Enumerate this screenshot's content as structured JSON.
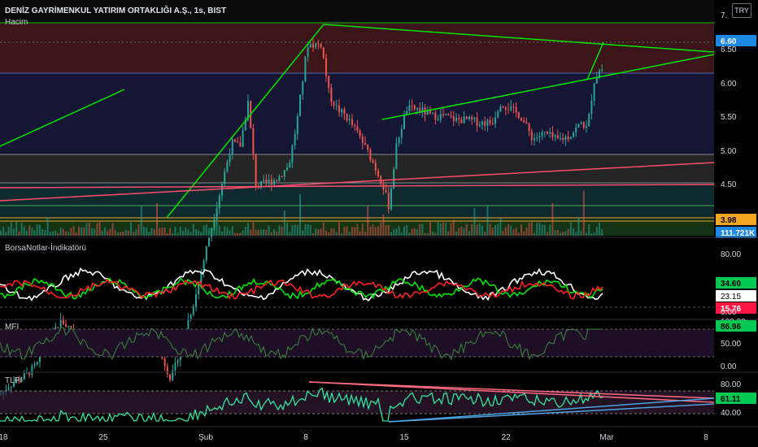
{
  "header": {
    "title": "DENİZ GAYRİMENKUL YATIRIM ORTAKLIĞI A.Ş., 1s, BIST",
    "volume_label": "Hacim",
    "currency": "TRY"
  },
  "panels": {
    "price": {
      "y_ticks": [
        "7.",
        "6.50",
        "6.00",
        "5.50",
        "5.00",
        "4.50",
        "4.00"
      ],
      "last_price": "6.60",
      "level_label": "3.98",
      "volume_label": "111.721K"
    },
    "borsanotlar": {
      "title": "BorsaNotlar-İndikatörü",
      "y_ticks": [
        "80.00",
        "0.00"
      ],
      "value_green": "34.60",
      "value_white": "23.15",
      "value_red": "15.76"
    },
    "mfi": {
      "title": "MFI",
      "y_ticks": [
        "100.00",
        "50.00",
        "0.00"
      ],
      "value": "86.96"
    },
    "tlpi": {
      "title": "TLPI",
      "y_ticks": [
        "80.00",
        "40.00"
      ],
      "value": "61.11"
    }
  },
  "x_axis": {
    "labels": [
      "18",
      "25",
      "Şub",
      "8",
      "15",
      "22",
      "Mar",
      "8"
    ]
  },
  "colors": {
    "background": "#000000",
    "up": "#26a69a",
    "down": "#ef5350",
    "trendline": "#00e600",
    "red_line": "#ff4d6d",
    "blue_line": "#4aa3df",
    "price_badge": "#1e88e5",
    "level_badge": "#f5a623",
    "green_badge": "#00c853",
    "red_badge": "#ff1744"
  },
  "chart_data": [
    {
      "type": "candlestick",
      "x": [
        "18",
        "25",
        "Şub",
        "8",
        "15",
        "22",
        "Mar",
        "8"
      ],
      "close_path": [
        [
          0,
          4.18
        ],
        [
          10,
          4.25
        ],
        [
          30,
          4.32
        ],
        [
          45,
          4.4
        ],
        [
          60,
          4.6
        ],
        [
          75,
          4.73
        ],
        [
          85,
          4.68
        ],
        [
          95,
          4.62
        ],
        [
          110,
          4.57
        ],
        [
          125,
          4.6
        ],
        [
          140,
          4.57
        ],
        [
          155,
          4.55
        ],
        [
          170,
          4.52
        ],
        [
          185,
          4.57
        ],
        [
          200,
          4.45
        ],
        [
          210,
          4.3
        ],
        [
          215,
          4.38
        ],
        [
          225,
          4.62
        ],
        [
          240,
          4.9
        ],
        [
          255,
          5.3
        ],
        [
          265,
          5.55
        ],
        [
          275,
          5.8
        ],
        [
          285,
          6.05
        ],
        [
          295,
          6.02
        ],
        [
          305,
          6.35
        ],
        [
          315,
          5.72
        ],
        [
          325,
          5.75
        ],
        [
          340,
          5.78
        ],
        [
          355,
          5.88
        ],
        [
          365,
          6.2
        ],
        [
          378,
          6.78
        ],
        [
          395,
          6.78
        ],
        [
          405,
          6.4
        ],
        [
          415,
          6.3
        ],
        [
          425,
          6.25
        ],
        [
          440,
          6.12
        ],
        [
          455,
          5.95
        ],
        [
          470,
          5.75
        ],
        [
          478,
          5.58
        ],
        [
          488,
          6.05
        ],
        [
          500,
          6.3
        ],
        [
          515,
          6.3
        ],
        [
          530,
          6.25
        ],
        [
          545,
          6.25
        ],
        [
          560,
          6.22
        ],
        [
          575,
          6.22
        ],
        [
          590,
          6.2
        ],
        [
          605,
          6.2
        ],
        [
          615,
          6.35
        ],
        [
          628,
          6.3
        ],
        [
          640,
          6.25
        ],
        [
          655,
          6.08
        ],
        [
          670,
          6.12
        ],
        [
          685,
          6.07
        ],
        [
          700,
          6.1
        ],
        [
          715,
          6.2
        ],
        [
          722,
          6.15
        ],
        [
          730,
          6.5
        ],
        [
          738,
          6.6
        ],
        [
          742,
          6.6
        ]
      ],
      "ylim": [
        4.0,
        7.0
      ]
    },
    {
      "type": "line",
      "title": "BorsaNotlar-İndikatörü",
      "series": [
        {
          "values": [
            34.6
          ]
        },
        {
          "values": [
            23.15
          ]
        },
        {
          "values": [
            15.76
          ]
        }
      ]
    },
    {
      "type": "line",
      "title": "MFI",
      "series": [
        {
          "values": [
            86.96
          ]
        }
      ],
      "ylim": [
        0,
        100
      ]
    },
    {
      "type": "line",
      "title": "TLPI",
      "series": [
        {
          "values": [
            61.11
          ]
        }
      ]
    }
  ]
}
